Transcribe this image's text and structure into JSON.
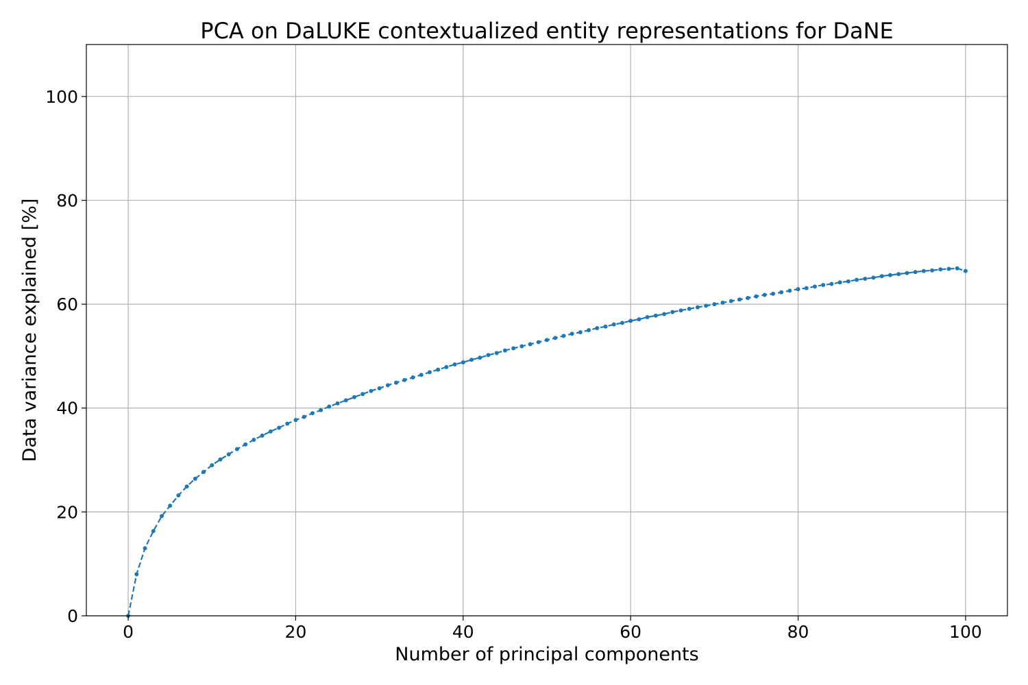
{
  "chart_data": {
    "type": "line",
    "title": "PCA on DaLUKE contextualized entity representations for DaNE",
    "xlabel": "Number of principal components",
    "ylabel": "Data variance explained [%]",
    "xlim": [
      -5,
      105
    ],
    "ylim": [
      0,
      110
    ],
    "xticks": [
      0,
      20,
      40,
      60,
      80,
      100
    ],
    "yticks": [
      0,
      20,
      40,
      60,
      80,
      100
    ],
    "grid": true,
    "legend": "none",
    "series": [
      {
        "color": "#1f77b4",
        "line_style": "dashed",
        "marker": "dot",
        "x": [
          0,
          1,
          2,
          3,
          4,
          5,
          6,
          7,
          8,
          9,
          10,
          11,
          12,
          13,
          14,
          15,
          16,
          17,
          18,
          19,
          20,
          21,
          22,
          23,
          24,
          25,
          26,
          27,
          28,
          29,
          30,
          31,
          32,
          33,
          34,
          35,
          36,
          37,
          38,
          39,
          40,
          41,
          42,
          43,
          44,
          45,
          46,
          47,
          48,
          49,
          50,
          51,
          52,
          53,
          54,
          55,
          56,
          57,
          58,
          59,
          60,
          61,
          62,
          63,
          64,
          65,
          66,
          67,
          68,
          69,
          70,
          71,
          72,
          73,
          74,
          75,
          76,
          77,
          78,
          79,
          80,
          81,
          82,
          83,
          84,
          85,
          86,
          87,
          88,
          89,
          90,
          91,
          92,
          93,
          94,
          95,
          96,
          97,
          98,
          99,
          100
        ],
        "y": [
          0,
          8.0,
          13.0,
          16.3,
          19.2,
          21.2,
          23.2,
          24.9,
          26.4,
          27.7,
          29.0,
          30.1,
          31.1,
          32.1,
          33.0,
          33.9,
          34.7,
          35.5,
          36.2,
          37.0,
          37.7,
          38.3,
          39.0,
          39.6,
          40.3,
          40.9,
          41.5,
          42.1,
          42.7,
          43.3,
          43.8,
          44.4,
          44.9,
          45.4,
          45.9,
          46.4,
          46.9,
          47.4,
          47.9,
          48.4,
          48.8,
          49.3,
          49.7,
          50.2,
          50.6,
          51.1,
          51.5,
          51.9,
          52.3,
          52.7,
          53.1,
          53.5,
          53.9,
          54.3,
          54.6,
          55.0,
          55.4,
          55.7,
          56.1,
          56.4,
          56.8,
          57.1,
          57.5,
          57.8,
          58.1,
          58.5,
          58.8,
          59.1,
          59.4,
          59.7,
          60.0,
          60.3,
          60.6,
          60.9,
          61.2,
          61.5,
          61.8,
          62.0,
          62.3,
          62.6,
          62.9,
          63.1,
          63.4,
          63.7,
          63.9,
          64.2,
          64.4,
          64.7,
          64.9,
          65.1,
          65.4,
          65.6,
          65.8,
          66.0,
          66.2,
          66.4,
          66.5,
          66.7,
          66.8,
          66.9,
          66.4
        ]
      }
    ]
  }
}
